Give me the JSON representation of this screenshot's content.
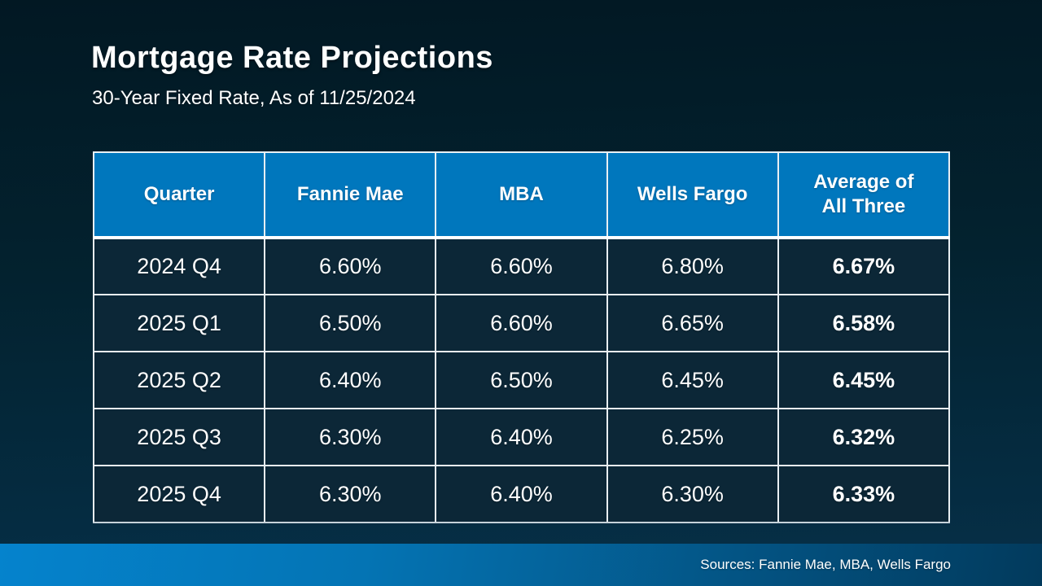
{
  "slide": {
    "title": "Mortgage Rate Projections",
    "subtitle": "30-Year Fixed Rate, As of 11/25/2024",
    "footer": {
      "sources": "Sources: Fannie Mae, MBA, Wells Fargo"
    }
  },
  "chart_data": {
    "type": "table",
    "title": "Mortgage Rate Projections",
    "subtitle": "30-Year Fixed Rate, As of 11/25/2024",
    "columns": [
      "Quarter",
      "Fannie Mae",
      "MBA",
      "Wells Fargo",
      "Average of\nAll Three"
    ],
    "rows": [
      [
        "2024 Q4",
        "6.60%",
        "6.60%",
        "6.80%",
        "6.67%"
      ],
      [
        "2025 Q1",
        "6.50%",
        "6.60%",
        "6.65%",
        "6.58%"
      ],
      [
        "2025 Q2",
        "6.40%",
        "6.50%",
        "6.45%",
        "6.45%"
      ],
      [
        "2025 Q3",
        "6.30%",
        "6.40%",
        "6.25%",
        "6.32%"
      ],
      [
        "2025 Q4",
        "6.30%",
        "6.40%",
        "6.30%",
        "6.33%"
      ]
    ],
    "series": [
      {
        "name": "Fannie Mae",
        "values": [
          6.6,
          6.5,
          6.4,
          6.3,
          6.3
        ]
      },
      {
        "name": "MBA",
        "values": [
          6.6,
          6.6,
          6.5,
          6.4,
          6.4
        ]
      },
      {
        "name": "Wells Fargo",
        "values": [
          6.8,
          6.65,
          6.45,
          6.25,
          6.3
        ]
      },
      {
        "name": "Average of All Three",
        "values": [
          6.67,
          6.58,
          6.45,
          6.32,
          6.33
        ]
      }
    ],
    "categories": [
      "2024 Q4",
      "2025 Q1",
      "2025 Q2",
      "2025 Q3",
      "2025 Q4"
    ],
    "unit": "%"
  },
  "colors": {
    "header_blue": "#0077bd",
    "row_bg": "#0c2737",
    "table_border": "#e9eff3",
    "header_divider": "#ffffff",
    "bg_top": "#021823",
    "bg_bottom": "#063049",
    "footer_left": "#0583cd",
    "footer_right": "#023a5c",
    "text": "#ffffff"
  }
}
